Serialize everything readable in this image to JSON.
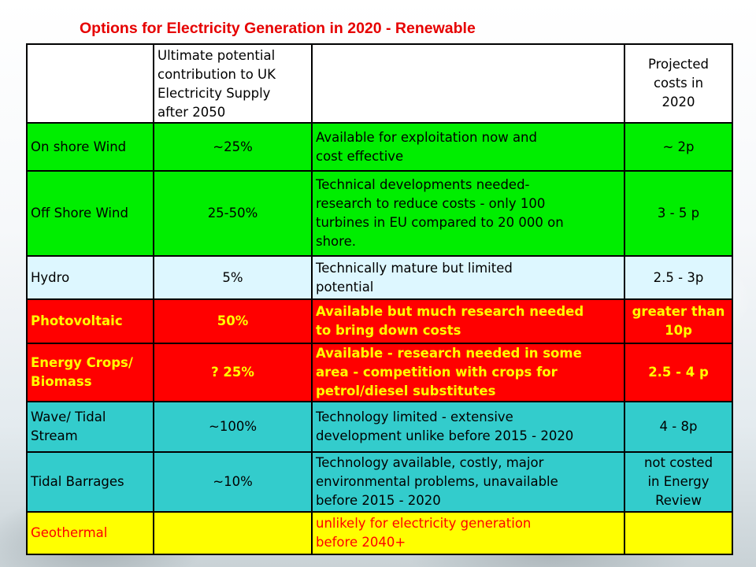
{
  "title": "Options for Electricity Generation in 2020 - Renewable",
  "table": {
    "header": {
      "name": "",
      "potential": "Ultimate potential\ncontribution to UK\nElectricity Supply\nafter 2050",
      "description": "",
      "cost": "Projected\ncosts in\n2020"
    },
    "rows": [
      {
        "name": "On shore Wind",
        "potential": "~25%",
        "description": "Available for exploitation now and\ncost effective",
        "cost": "~ 2p",
        "bg": "#00ee00",
        "text_color": "#000000",
        "bold": false
      },
      {
        "name": "Off Shore Wind",
        "potential": "25-50%",
        "description": "Technical developments needed-\nresearch to reduce costs - only 100\nturbines in EU compared to 20 000 on\nshore.",
        "cost": "3 - 5 p",
        "bg": "#00ee00",
        "text_color": "#000000",
        "bold": false
      },
      {
        "name": "Hydro",
        "potential": "5%",
        "description": "Technically mature but limited\npotential",
        "cost": "2.5 - 3p",
        "bg": "#ddf7ff",
        "text_color": "#000000",
        "bold": false
      },
      {
        "name": "Photovoltaic",
        "potential": "50%",
        "description": "Available but much research needed\nto bring down costs",
        "cost": "greater than\n10p",
        "bg": "#ff0000",
        "text_color": "#ffff00",
        "bold": true
      },
      {
        "name": "Energy Crops/\nBiomass",
        "potential": "? 25%",
        "description": "Available - research needed in some\narea - competition with crops for\npetrol/diesel substitutes",
        "cost": "2.5 - 4 p",
        "bg": "#ff0000",
        "text_color": "#ffff00",
        "bold": true
      },
      {
        "name": "Wave/ Tidal\nStream",
        "potential": "~100%",
        "description": "Technology limited - extensive\ndevelopment unlike before 2015 - 2020",
        "cost": "4 - 8p",
        "bg": "#33cccc",
        "text_color": "#000000",
        "bold": false
      },
      {
        "name": "Tidal Barrages",
        "potential": "~10%",
        "description": "Technology available, costly, major\nenvironmental problems, unavailable\nbefore 2015 - 2020",
        "cost": "not costed\nin Energy\nReview",
        "bg": "#33cccc",
        "text_color": "#000000",
        "bold": false
      },
      {
        "name": "Geothermal",
        "potential": "",
        "description": "unlikely for electricity generation\nbefore 2040+",
        "cost": "",
        "bg": "#ffff00",
        "text_color": "#ff0000",
        "bold": false
      }
    ]
  }
}
